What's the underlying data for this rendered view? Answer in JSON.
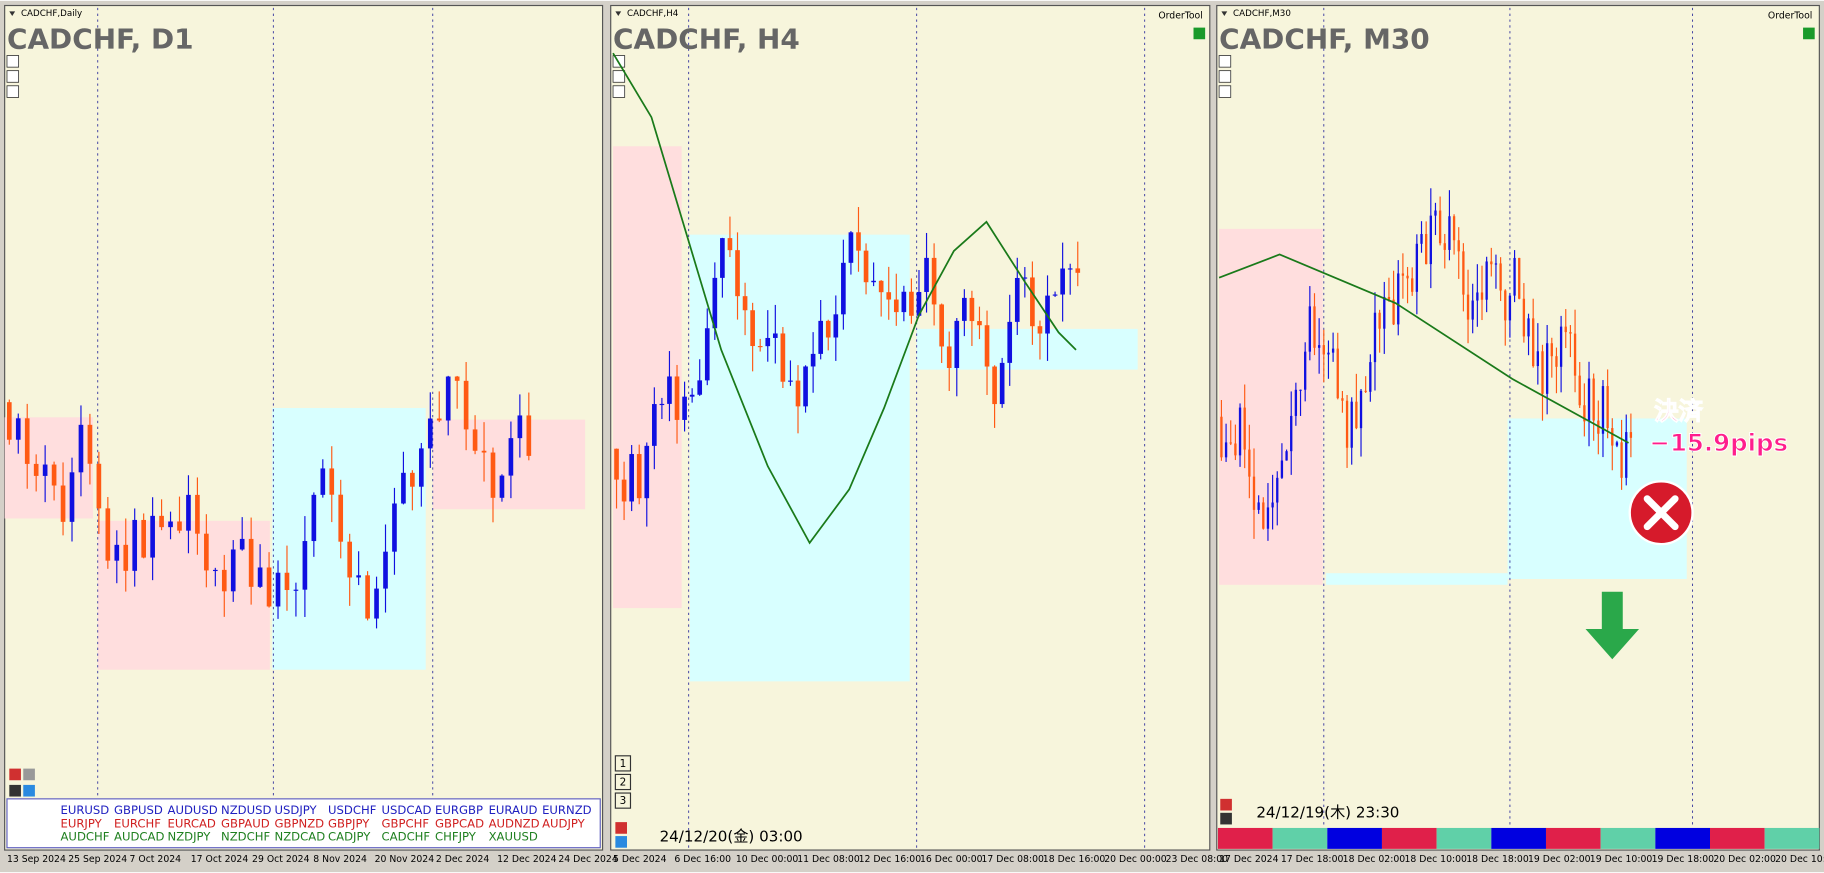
{
  "panels": [
    {
      "label": "CADCHF,Daily",
      "title": "CADCHF, D1",
      "x_labels": [
        "13 Sep 2024",
        "25 Sep 2024",
        "7 Oct 2024",
        "17 Oct 2024",
        "29 Oct 2024",
        "8 Nov 2024",
        "20 Nov 2024",
        "2 Dec 2024",
        "12 Dec 2024",
        "24 Dec 2024"
      ]
    },
    {
      "label": "CADCHF,H4",
      "title": "CADCHF, H4",
      "tool": "OrderTool",
      "buttons": [
        "1",
        "2",
        "3"
      ],
      "timestamp": "24/12/20(金) 03:00",
      "x_labels": [
        "5 Dec 2024",
        "6 Dec 16:00",
        "10 Dec 00:00",
        "11 Dec 08:00",
        "12 Dec 16:00",
        "16 Dec 00:00",
        "17 Dec 08:00",
        "18 Dec 16:00",
        "20 Dec 00:00",
        "23 Dec 08:00"
      ]
    },
    {
      "label": "CADCHF,M30",
      "title": "CADCHF, M30",
      "tool": "OrderTool",
      "timestamp": "24/12/19(木) 23:30",
      "annotation": [
        "決済",
        "−15.9pips"
      ],
      "x_labels": [
        "17 Dec 2024",
        "17 Dec 18:00",
        "18 Dec 02:00",
        "18 Dec 10:00",
        "18 Dec 18:00",
        "19 Dec 02:00",
        "19 Dec 10:00",
        "19 Dec 18:00",
        "20 Dec 02:00",
        "20 Dec 10:00"
      ]
    }
  ],
  "symbols": [
    [
      "EURUSD",
      "GBPUSD",
      "AUDUSD",
      "NZDUSD",
      "USDJPY",
      "USDCHF",
      "USDCAD",
      "EURGBP",
      "EURAUD",
      "EURNZD"
    ],
    [
      "EURJPY",
      "EURCHF",
      "EURCAD",
      "GBPAUD",
      "GBPNZD",
      "GBPJPY",
      "GBPCHF",
      "GBPCAD",
      "AUDNZD",
      "AUDJPY"
    ],
    [
      "AUDCHF",
      "AUDCAD",
      "NZDJPY",
      "NZDCHF",
      "NZDCAD",
      "CADJPY",
      "CADCHF",
      "CHFJPY",
      "XAUUSD"
    ]
  ]
}
